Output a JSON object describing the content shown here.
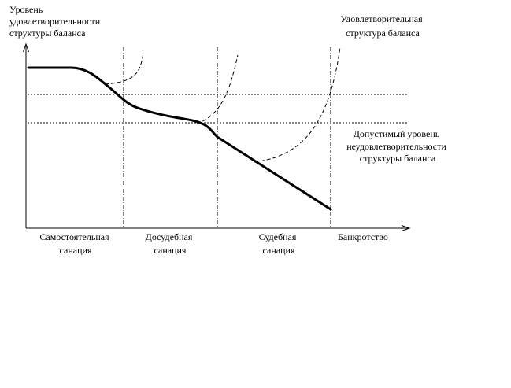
{
  "y_axis_label": [
    "Уровень",
    "удовлетворительности",
    "структуры баланса"
  ],
  "top_right_label": [
    "Удовлетворительная",
    "структура баланса"
  ],
  "threshold_label": [
    "Допустимый уровень",
    "неудовлетворительности",
    "структуры баланса"
  ],
  "stages": [
    [
      "Самостоятельная",
      "санация"
    ],
    [
      "Досудебная",
      "санация"
    ],
    [
      "Судебная",
      "санация"
    ],
    [
      "Банкротство"
    ]
  ],
  "colors": {
    "ink": "#000000",
    "background": "#ffffff"
  }
}
